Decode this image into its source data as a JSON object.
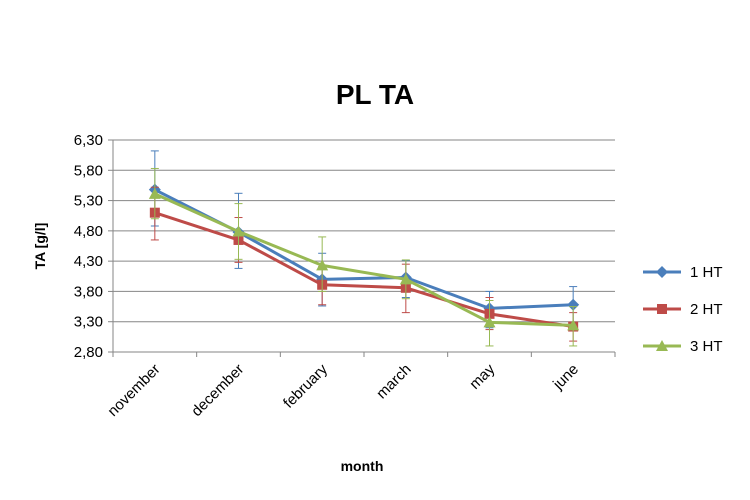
{
  "chart_data": {
    "type": "line",
    "title": "PL TA",
    "xlabel": "month",
    "ylabel": "TA [g/l]",
    "categories": [
      "november",
      "december",
      "february",
      "march",
      "may",
      "june"
    ],
    "y_ticks": [
      "2,80",
      "3,30",
      "3,80",
      "4,30",
      "4,80",
      "5,30",
      "5,80",
      "6,30"
    ],
    "ylim": [
      2.8,
      6.3
    ],
    "grid": true,
    "legend_position": "right",
    "series": [
      {
        "name": "1 HT",
        "color": "#4A7EBB",
        "marker": "diamond",
        "values": [
          5.48,
          4.78,
          4.0,
          4.03,
          3.52,
          3.58
        ],
        "error_low": [
          4.88,
          4.18,
          3.56,
          3.7,
          3.2,
          3.25
        ],
        "error_high": [
          6.12,
          5.42,
          4.43,
          4.31,
          3.8,
          3.88
        ]
      },
      {
        "name": "2 HT",
        "color": "#BE4B48",
        "marker": "square",
        "values": [
          5.1,
          4.65,
          3.91,
          3.86,
          3.43,
          3.22
        ],
        "error_low": [
          4.65,
          4.28,
          3.58,
          3.45,
          3.17,
          2.98
        ],
        "error_high": [
          5.52,
          5.02,
          4.21,
          4.25,
          3.7,
          3.45
        ]
      },
      {
        "name": "3 HT",
        "color": "#98B954",
        "marker": "triangle",
        "values": [
          5.41,
          4.79,
          4.23,
          4.0,
          3.29,
          3.24
        ],
        "error_low": [
          5.0,
          4.33,
          3.8,
          3.68,
          2.9,
          2.9
        ],
        "error_high": [
          5.83,
          5.25,
          4.7,
          4.32,
          3.65,
          3.55
        ]
      }
    ]
  }
}
